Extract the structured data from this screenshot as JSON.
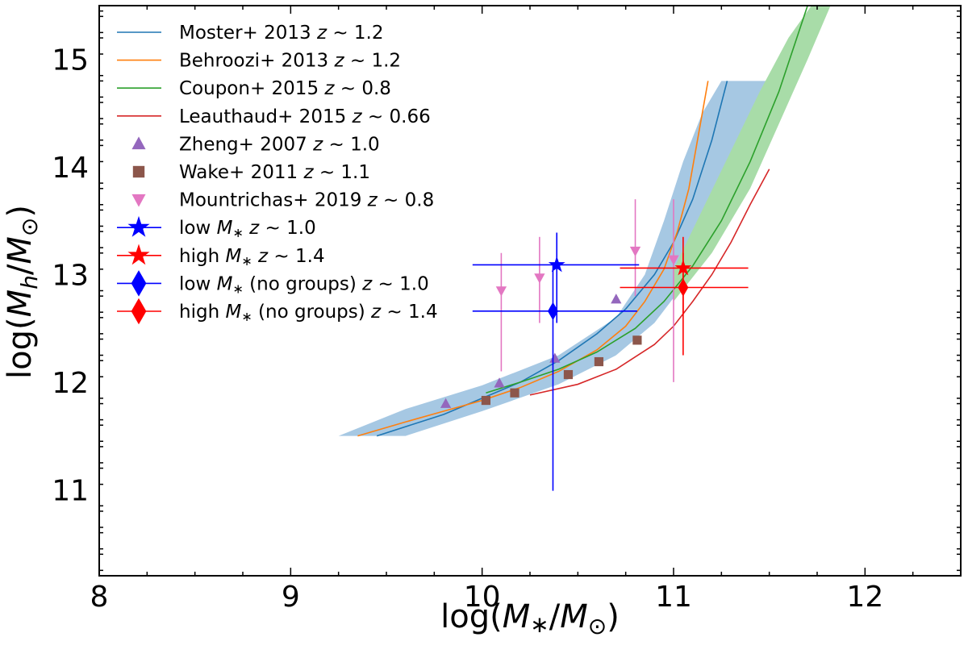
{
  "chart_data": {
    "type": "scatter",
    "xlabel": "log(M∗/M⊙)",
    "ylabel": "log(Mh/M⊙)",
    "xlim": [
      8,
      12.5
    ],
    "ylim": [
      10.2,
      15.5
    ],
    "xticks": [
      8,
      9,
      10,
      11,
      12
    ],
    "yticks": [
      11,
      12,
      13,
      14,
      15
    ],
    "grid": false,
    "legend_position": "top-left",
    "colors": {
      "moster": "#1f77b4",
      "moster_band": "#a6c8e3",
      "behroozi": "#ff7f0e",
      "coupon": "#2ca02c",
      "coupon_band": "#a8dca8",
      "leauthaud": "#d62728",
      "zheng": "#9467bd",
      "wake": "#8c564b",
      "mountrichas": "#e377c2",
      "low_mstar": "#0000ff",
      "high_mstar": "#ff0000"
    },
    "lines": [
      {
        "id": "moster",
        "name": "Moster+ 2013 z ~ 1.2",
        "legend": "Moster+ 2013 ",
        "z": "z ~ 1.2",
        "x": [
          9.45,
          9.8,
          10.0,
          10.2,
          10.4,
          10.6,
          10.75,
          10.9,
          11.0,
          11.1,
          11.2,
          11.28
        ],
        "y": [
          11.5,
          11.7,
          11.85,
          12.0,
          12.2,
          12.45,
          12.68,
          13.0,
          13.3,
          13.7,
          14.25,
          14.8
        ]
      },
      {
        "id": "behroozi",
        "name": "Behroozi+ 2013 z ~ 1.2",
        "legend": "Behroozi+ 2013 ",
        "z": "z ~ 1.2",
        "x": [
          9.35,
          9.6,
          9.8,
          10.0,
          10.2,
          10.4,
          10.6,
          10.75,
          10.85,
          10.95,
          11.02,
          11.08,
          11.13,
          11.18
        ],
        "y": [
          11.5,
          11.63,
          11.73,
          11.83,
          11.95,
          12.1,
          12.3,
          12.52,
          12.75,
          13.05,
          13.4,
          13.8,
          14.3,
          14.8
        ]
      },
      {
        "id": "coupon",
        "name": "Coupon+ 2015 z ~ 0.8",
        "legend": "Coupon+ 2015 ",
        "z": "z ~ 0.8",
        "x": [
          10.02,
          10.2,
          10.4,
          10.6,
          10.8,
          10.95,
          11.1,
          11.25,
          11.4,
          11.55,
          11.7
        ],
        "y": [
          11.9,
          12.0,
          12.12,
          12.28,
          12.5,
          12.75,
          13.08,
          13.5,
          14.05,
          14.7,
          15.5
        ]
      },
      {
        "id": "leauthaud",
        "name": "Leauthaud+ 2015 z ~ 0.66",
        "legend": "Leauthaud+ 2015 ",
        "z": "z ~ 0.66",
        "x": [
          10.25,
          10.5,
          10.7,
          10.9,
          11.0,
          11.1,
          11.2,
          11.3,
          11.4,
          11.5
        ],
        "y": [
          11.88,
          11.98,
          12.12,
          12.35,
          12.52,
          12.75,
          13.0,
          13.3,
          13.65,
          13.98
        ]
      }
    ],
    "bands": [
      {
        "id": "moster_band",
        "upper_x": [
          9.25,
          9.6,
          10.0,
          10.4,
          10.7,
          10.85,
          10.95,
          11.05,
          11.15,
          11.25
        ],
        "upper_y": [
          11.5,
          11.75,
          11.97,
          12.25,
          12.6,
          13.0,
          13.5,
          14.05,
          14.5,
          14.8
        ],
        "lower_x": [
          9.6,
          10.0,
          10.4,
          10.7,
          10.9,
          11.05,
          11.2,
          11.35,
          11.45,
          11.55
        ],
        "lower_y": [
          11.5,
          11.73,
          11.98,
          12.25,
          12.55,
          12.9,
          13.4,
          14.0,
          14.5,
          14.8
        ]
      },
      {
        "id": "coupon_band",
        "upper_x": [
          11.0,
          11.15,
          11.3,
          11.45,
          11.6,
          11.72
        ],
        "upper_y": [
          13.05,
          13.6,
          14.15,
          14.7,
          15.2,
          15.5
        ],
        "lower_x": [
          11.0,
          11.2,
          11.4,
          11.55,
          11.7,
          11.82
        ],
        "lower_y": [
          12.75,
          13.2,
          13.8,
          14.4,
          15.0,
          15.5
        ]
      }
    ],
    "markers": [
      {
        "id": "zheng",
        "name": "Zheng+ 2007 z ~ 1.0",
        "legend": "Zheng+ 2007 ",
        "z": "z ~ 1.0",
        "shape": "triangle-up",
        "points": [
          {
            "x": 9.81,
            "y": 11.8
          },
          {
            "x": 10.09,
            "y": 11.99
          },
          {
            "x": 10.38,
            "y": 12.22
          },
          {
            "x": 10.7,
            "y": 12.77
          }
        ]
      },
      {
        "id": "wake",
        "name": "Wake+ 2011 z ~ 1.1",
        "legend": "Wake+ 2011 ",
        "z": "z ~ 1.1",
        "shape": "square",
        "points": [
          {
            "x": 10.02,
            "y": 11.83
          },
          {
            "x": 10.17,
            "y": 11.9
          },
          {
            "x": 10.45,
            "y": 12.07
          },
          {
            "x": 10.61,
            "y": 12.19
          },
          {
            "x": 10.81,
            "y": 12.39
          }
        ]
      },
      {
        "id": "mountrichas",
        "name": "Mountrichas+ 2019 z ~ 0.8",
        "legend": "Mountrichas+ 2019 ",
        "z": "z ~ 0.8",
        "shape": "triangle-down",
        "points": [
          {
            "x": 10.1,
            "y": 12.85,
            "ylo": 12.1,
            "yhi": 13.2
          },
          {
            "x": 10.3,
            "y": 12.97,
            "ylo": 12.55,
            "yhi": 13.35
          },
          {
            "x": 10.8,
            "y": 13.22,
            "ylo": 12.8,
            "yhi": 13.7
          },
          {
            "x": 11.0,
            "y": 13.14,
            "ylo": 12.0,
            "yhi": 13.7
          }
        ]
      },
      {
        "id": "low_mstar",
        "name": "low M∗ z ~ 1.0",
        "legend": "low ",
        "sym": "M∗",
        "z": "z ~ 1.0",
        "shape": "star",
        "points": [
          {
            "x": 10.39,
            "y": 13.09,
            "xlo": 9.95,
            "xhi": 10.82,
            "ylo": 12.55,
            "yhi": 13.39
          }
        ]
      },
      {
        "id": "high_mstar",
        "name": "high M∗ z ~ 1.4",
        "legend": "high ",
        "sym": "M∗",
        "z": "z ~ 1.4",
        "shape": "star",
        "points": [
          {
            "x": 11.05,
            "y": 13.06,
            "xlo": 10.72,
            "xhi": 11.39,
            "ylo": 12.64,
            "yhi": 13.35
          }
        ]
      },
      {
        "id": "low_ng",
        "name": "low M∗ (no groups) z ~ 1.0",
        "legend": "low ",
        "sym": "M∗",
        "legend2": " (no groups) ",
        "z": "z ~ 1.0",
        "shape": "diamond",
        "points": [
          {
            "x": 10.37,
            "y": 12.66,
            "xlo": 9.95,
            "xhi": 10.81,
            "ylo": 10.99,
            "yhi": 13.09
          }
        ]
      },
      {
        "id": "high_ng",
        "name": "high M∗ (no groups) z ~ 1.4",
        "legend": "high ",
        "sym": "M∗",
        "legend2": " (no groups) ",
        "z": "z ~ 1.4",
        "shape": "diamond",
        "points": [
          {
            "x": 11.05,
            "y": 12.88,
            "xlo": 10.72,
            "xhi": 11.39,
            "ylo": 12.25,
            "yhi": 13.2
          }
        ]
      }
    ]
  }
}
